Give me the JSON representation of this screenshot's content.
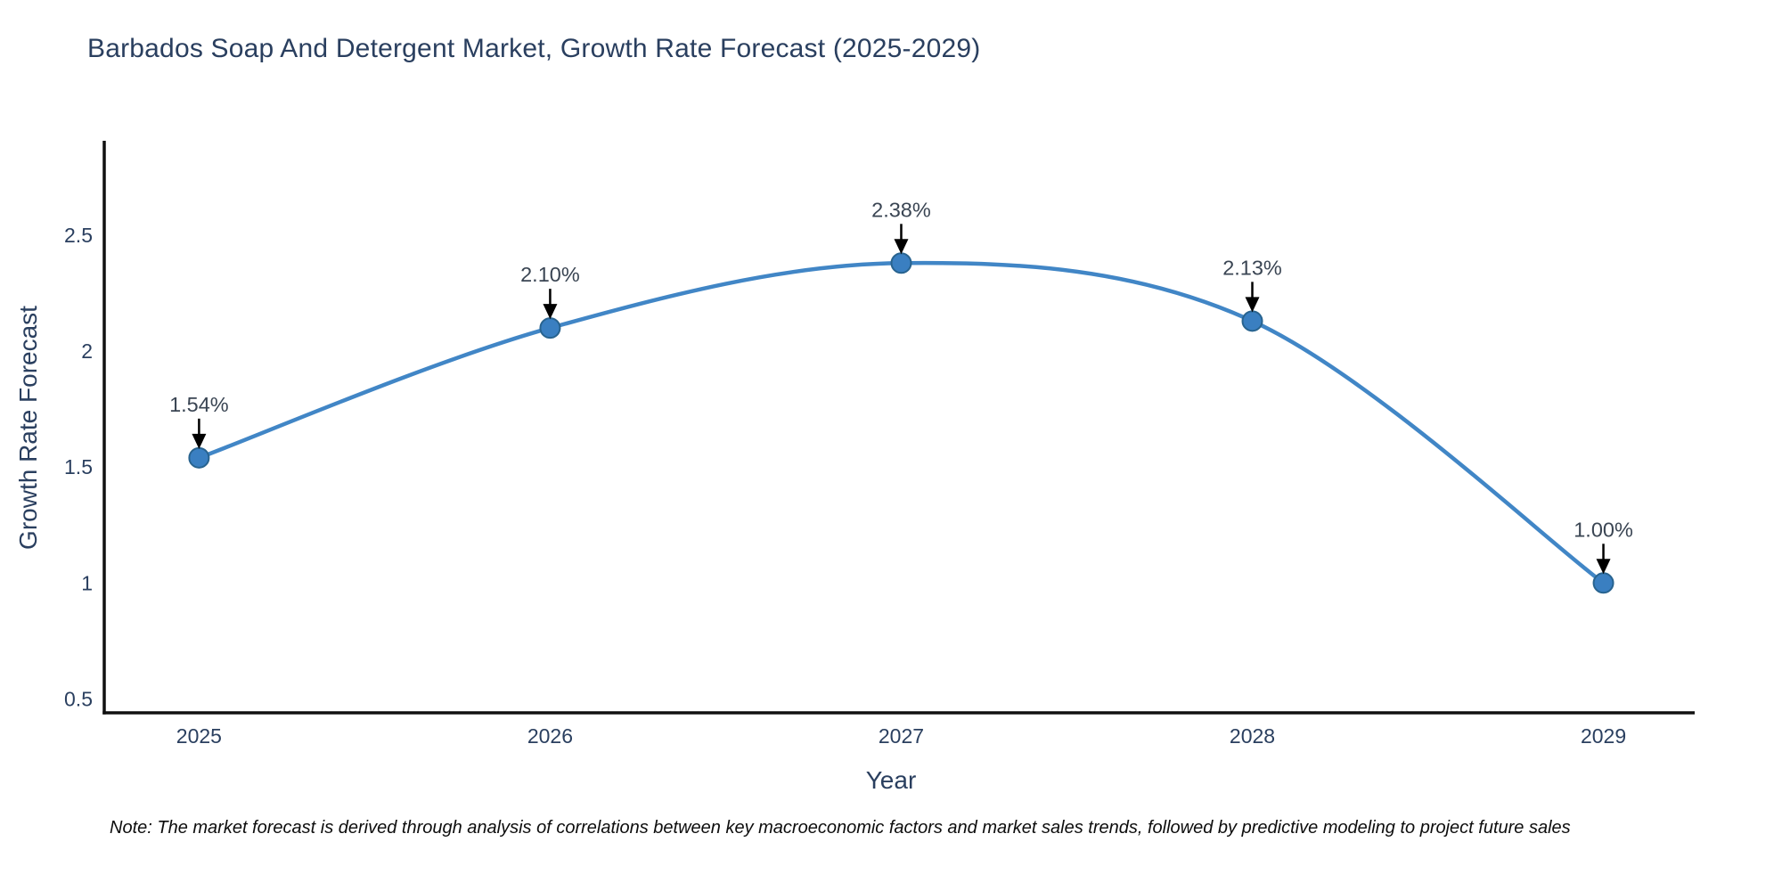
{
  "title": "Barbados Soap And Detergent Market, Growth Rate Forecast (2025-2029)",
  "note": "Note: The market forecast is derived through analysis of correlations between key macroeconomic factors and market sales trends, followed by predictive modeling to project future sales",
  "chart_data": {
    "type": "line",
    "title": "Barbados Soap And Detergent Market, Growth Rate Forecast (2025-2029)",
    "xlabel": "Year",
    "ylabel": "Growth Rate Forecast",
    "x": [
      2025,
      2026,
      2027,
      2028,
      2029
    ],
    "values": [
      1.54,
      2.1,
      2.38,
      2.13,
      1.0
    ],
    "point_labels": [
      "1.54%",
      "2.10%",
      "2.38%",
      "2.13%",
      "1.00%"
    ],
    "yticks": [
      "0.5",
      "1",
      "1.5",
      "2",
      "2.5"
    ],
    "ytick_values": [
      0.5,
      1,
      1.5,
      2,
      2.5
    ],
    "xticks": [
      "2025",
      "2026",
      "2027",
      "2028",
      "2029"
    ],
    "ylim": [
      0.44,
      2.9
    ],
    "xlim": [
      2024.73,
      2029.26
    ],
    "line_shape": "spline",
    "grid": false,
    "legend": "none",
    "colors": {
      "line": "#4186c6",
      "marker_fill": "#3a7fc1",
      "marker_edge": "#28638f",
      "axis_line": "#111111",
      "tick_text": "#2a3f5f",
      "annotation_text": "#3a4553",
      "arrow": "#000000",
      "background": "#ffffff"
    }
  }
}
